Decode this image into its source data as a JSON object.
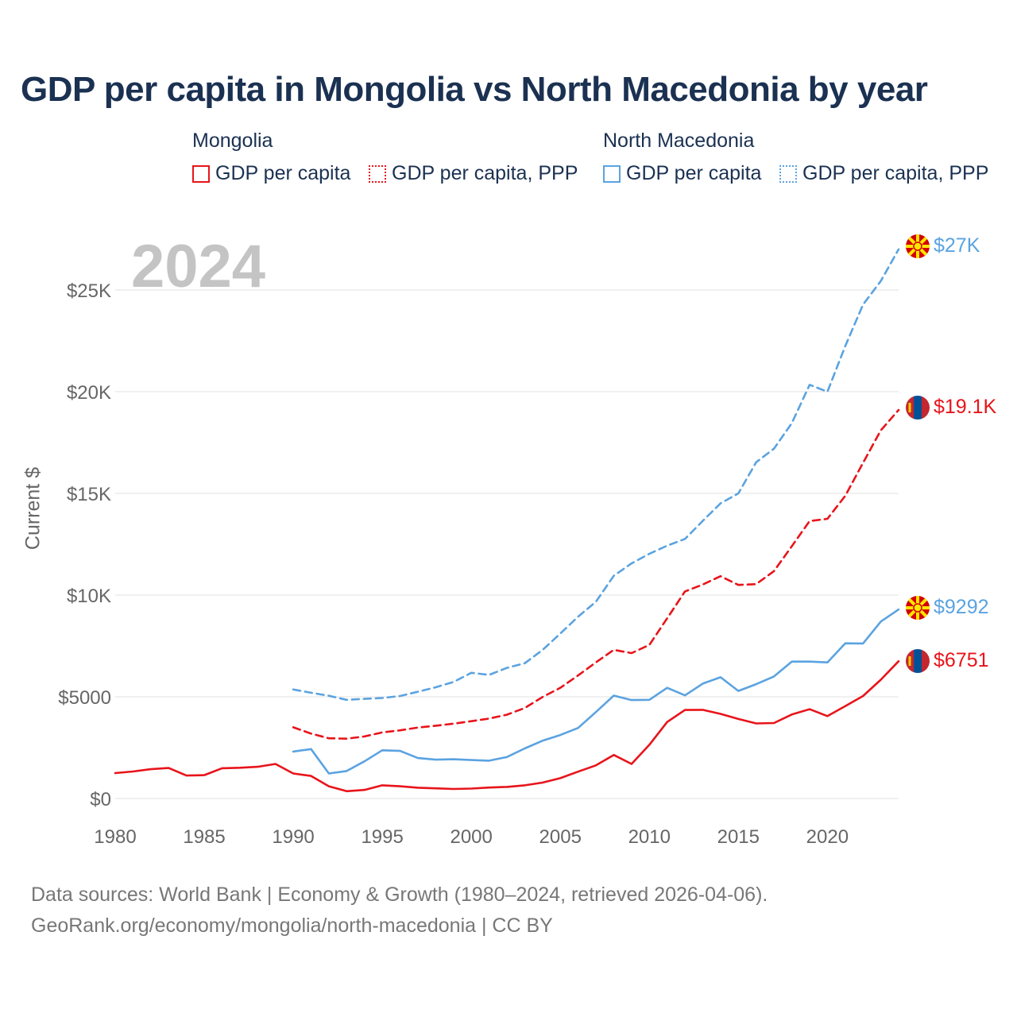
{
  "title": "GDP per capita in Mongolia vs North Macedonia by year",
  "year_label": "2024",
  "colors": {
    "mongolia": "#e8141b",
    "north_macedonia": "#5ba3e0",
    "title": "#1b3152",
    "grid": "#e6e6e6",
    "watermark": "#c4c4c4"
  },
  "legend": {
    "mongolia": {
      "name": "Mongolia",
      "solid": "GDP per capita",
      "dotted": "GDP per capita, PPP"
    },
    "north_macedonia": {
      "name": "North Macedonia",
      "solid": "GDP per capita",
      "dotted": "GDP per capita, PPP"
    }
  },
  "end_labels": {
    "mk_ppp": "$27K",
    "mn_ppp": "$19.1K",
    "mk_gdp": "$9292",
    "mn_gdp": "$6751"
  },
  "source": {
    "line1": "Data sources: World Bank | Economy & Growth (1980–2024, retrieved 2026-04-06).",
    "line2": "GeoRank.org/economy/mongolia/north-macedonia | CC BY"
  },
  "chart_data": {
    "type": "line",
    "title": "GDP per capita in Mongolia vs North Macedonia by year",
    "xlabel": "",
    "ylabel": "Current $",
    "xlim": [
      1980,
      2024
    ],
    "ylim": [
      0,
      27000
    ],
    "yticks": [
      0,
      5000,
      10000,
      15000,
      20000,
      25000
    ],
    "ytick_labels": [
      "$0",
      "$5000",
      "$10K",
      "$15K",
      "$20K",
      "$25K"
    ],
    "xticks": [
      1980,
      1985,
      1990,
      1995,
      2000,
      2005,
      2010,
      2015,
      2020
    ],
    "xtick_labels": [
      "1980",
      "1985",
      "1990",
      "1995",
      "2000",
      "2005",
      "2010",
      "2015",
      "2020"
    ],
    "grid": true,
    "series": [
      {
        "name": "Mongolia GDP per capita",
        "country": "mongolia",
        "style": "solid",
        "x": [
          1980,
          1981,
          1982,
          1983,
          1984,
          1985,
          1986,
          1987,
          1988,
          1989,
          1990,
          1991,
          1992,
          1993,
          1994,
          1995,
          1996,
          1997,
          1998,
          1999,
          2000,
          2001,
          2002,
          2003,
          2004,
          2005,
          2006,
          2007,
          2008,
          2009,
          2010,
          2011,
          2012,
          2013,
          2014,
          2015,
          2016,
          2017,
          2018,
          2019,
          2020,
          2021,
          2022,
          2023,
          2024
        ],
        "values": [
          1250,
          1330,
          1440,
          1500,
          1130,
          1150,
          1490,
          1510,
          1560,
          1700,
          1230,
          1110,
          600,
          360,
          420,
          650,
          600,
          530,
          500,
          470,
          490,
          540,
          570,
          650,
          780,
          1000,
          1320,
          1630,
          2140,
          1700,
          2640,
          3760,
          4350,
          4360,
          4160,
          3910,
          3690,
          3710,
          4130,
          4390,
          4050,
          4540,
          5040,
          5840,
          6751
        ]
      },
      {
        "name": "Mongolia GDP per capita, PPP",
        "country": "mongolia",
        "style": "dotted",
        "x": [
          1990,
          1991,
          1992,
          1993,
          1994,
          1995,
          1996,
          1997,
          1998,
          1999,
          2000,
          2001,
          2002,
          2003,
          2004,
          2005,
          2006,
          2007,
          2008,
          2009,
          2010,
          2011,
          2012,
          2013,
          2014,
          2015,
          2016,
          2017,
          2018,
          2019,
          2020,
          2021,
          2022,
          2023,
          2024
        ],
        "values": [
          3500,
          3190,
          2960,
          2940,
          3050,
          3250,
          3350,
          3490,
          3580,
          3680,
          3800,
          3930,
          4120,
          4450,
          4990,
          5440,
          6050,
          6690,
          7310,
          7150,
          7550,
          8860,
          10180,
          10520,
          10930,
          10500,
          10540,
          11180,
          12400,
          13640,
          13750,
          14880,
          16500,
          18100,
          19100
        ]
      },
      {
        "name": "North Macedonia GDP per capita",
        "country": "north_macedonia",
        "style": "solid",
        "x": [
          1990,
          1991,
          1992,
          1993,
          1994,
          1995,
          1996,
          1997,
          1998,
          1999,
          2000,
          2001,
          2002,
          2003,
          2004,
          2005,
          2006,
          2007,
          2008,
          2009,
          2010,
          2011,
          2012,
          2013,
          2014,
          2015,
          2016,
          2017,
          2018,
          2019,
          2020,
          2021,
          2022,
          2023,
          2024
        ],
        "values": [
          2310,
          2430,
          1230,
          1350,
          1830,
          2370,
          2340,
          1990,
          1910,
          1930,
          1890,
          1860,
          2040,
          2460,
          2840,
          3120,
          3470,
          4250,
          5060,
          4840,
          4850,
          5440,
          5070,
          5650,
          5960,
          5290,
          5620,
          6000,
          6730,
          6730,
          6690,
          7630,
          7620,
          8700,
          9292
        ]
      },
      {
        "name": "North Macedonia GDP per capita, PPP",
        "country": "north_macedonia",
        "style": "dotted",
        "x": [
          1990,
          1991,
          1992,
          1993,
          1994,
          1995,
          1996,
          1997,
          1998,
          1999,
          2000,
          2001,
          2002,
          2003,
          2004,
          2005,
          2006,
          2007,
          2008,
          2009,
          2010,
          2011,
          2012,
          2013,
          2014,
          2015,
          2016,
          2017,
          2018,
          2019,
          2020,
          2021,
          2022,
          2023,
          2024
        ],
        "values": [
          5360,
          5200,
          5050,
          4850,
          4900,
          4940,
          5040,
          5250,
          5470,
          5730,
          6180,
          6080,
          6420,
          6650,
          7300,
          8110,
          8940,
          9670,
          10950,
          11560,
          12030,
          12430,
          12760,
          13650,
          14510,
          15000,
          16530,
          17200,
          18450,
          20340,
          20000,
          22240,
          24280,
          25440,
          27000
        ]
      }
    ]
  }
}
